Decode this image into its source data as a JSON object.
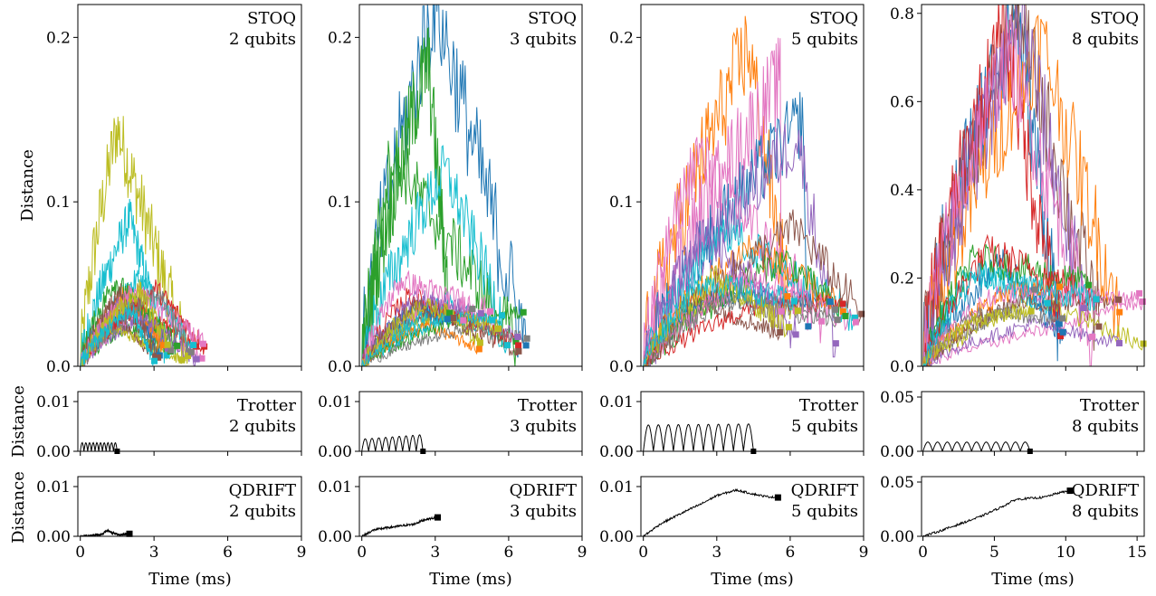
{
  "figure": {
    "ylabel": "Distance",
    "xlabel": "Time (ms)",
    "palette": [
      "#1f77b4",
      "#ff7f0e",
      "#2ca02c",
      "#d62728",
      "#9467bd",
      "#8c564b",
      "#e377c2",
      "#7f7f7f",
      "#bcbd22",
      "#17becf"
    ]
  },
  "chart_data": [
    {
      "type": "line",
      "row": "stoq",
      "col": 0,
      "name_line1": "STOQ",
      "name_line2": "2 qubits",
      "ylim": [
        0,
        0.22
      ],
      "yticks": [
        0,
        0.1,
        0.2
      ],
      "ytick_labels": [
        "0.0",
        "0.1",
        "0.2"
      ],
      "xlim": [
        -0.1,
        9
      ],
      "xticks": [
        0,
        3,
        6,
        9
      ],
      "n_series": 20,
      "tmax_range": [
        3.0,
        5.1
      ],
      "typical_peak": 0.04,
      "outliers": [
        {
          "peak": 0.145,
          "peak_t": 1.5,
          "color": "#bcbd22"
        },
        {
          "peak": 0.09,
          "peak_t": 2.0,
          "color": "#17becf"
        }
      ],
      "end_distance_range": [
        0.003,
        0.014
      ]
    },
    {
      "type": "line",
      "row": "stoq",
      "col": 1,
      "name_line1": "STOQ",
      "name_line2": "3 qubits",
      "ylim": [
        0,
        0.22
      ],
      "yticks": [
        0,
        0.1,
        0.2
      ],
      "ytick_labels": [
        "0.0",
        "0.1",
        "0.2"
      ],
      "xlim": [
        -0.1,
        9
      ],
      "xticks": [
        0,
        3,
        6,
        9
      ],
      "n_series": 20,
      "tmax_range": [
        3.5,
        6.8
      ],
      "typical_peak": 0.04,
      "outliers": [
        {
          "peak": 0.222,
          "peak_t": 3.0,
          "color": "#1f77b4"
        },
        {
          "peak": 0.186,
          "peak_t": 2.7,
          "color": "#2ca02c"
        },
        {
          "peak": 0.13,
          "peak_t": 1.2,
          "color": "#2ca02c"
        },
        {
          "peak": 0.12,
          "peak_t": 3.4,
          "color": "#17becf"
        }
      ],
      "end_distance_range": [
        0.005,
        0.035
      ]
    },
    {
      "type": "line",
      "row": "stoq",
      "col": 2,
      "name_line1": "STOQ",
      "name_line2": "5 qubits",
      "ylim": [
        0,
        0.22
      ],
      "yticks": [
        0,
        0.1,
        0.2
      ],
      "ytick_labels": [
        "0.0",
        "0.1",
        "0.2"
      ],
      "xlim": [
        -0.1,
        9
      ],
      "xticks": [
        0,
        3,
        6,
        9
      ],
      "n_series": 20,
      "tmax_range": [
        5.5,
        9.0
      ],
      "typical_peak": 0.065,
      "outliers": [
        {
          "peak": 0.195,
          "peak_t": 4.3,
          "color": "#ff7f0e"
        },
        {
          "peak": 0.19,
          "peak_t": 6.3,
          "color": "#e377c2"
        },
        {
          "peak": 0.15,
          "peak_t": 6.5,
          "color": "#1f77b4"
        },
        {
          "peak": 0.14,
          "peak_t": 6.3,
          "color": "#9467bd"
        },
        {
          "peak": 0.13,
          "peak_t": 2.2,
          "color": "#e377c2"
        }
      ],
      "end_distance_range": [
        0.012,
        0.045
      ]
    },
    {
      "type": "line",
      "row": "stoq",
      "col": 3,
      "name_line1": "STOQ",
      "name_line2": "8 qubits",
      "ylim": [
        0,
        0.82
      ],
      "yticks": [
        0,
        0.2,
        0.4,
        0.6,
        0.8
      ],
      "ytick_labels": [
        "0.0",
        "0.2",
        "0.4",
        "0.6",
        "0.8"
      ],
      "xlim": [
        -0.1,
        15.5
      ],
      "xticks": [
        0,
        5,
        10,
        15
      ],
      "n_series": 20,
      "tmax_range": [
        7.5,
        15.5
      ],
      "typical_peak": 0.19,
      "outliers": [
        {
          "peak": 0.81,
          "peak_t": 6.5,
          "color": "#1f77b4"
        },
        {
          "peak": 0.8,
          "peak_t": 6.7,
          "color": "#8c564b"
        },
        {
          "peak": 0.76,
          "peak_t": 5.7,
          "color": "#d62728"
        },
        {
          "peak": 0.74,
          "peak_t": 8.3,
          "color": "#ff7f0e"
        },
        {
          "peak": 0.78,
          "peak_t": 7.0,
          "color": "#9467bd"
        },
        {
          "peak": 0.72,
          "peak_t": 6.0,
          "color": "#e377c2"
        }
      ],
      "end_distance_range": [
        0.045,
        0.19
      ]
    },
    {
      "type": "line",
      "row": "trotter",
      "col": 0,
      "name_line1": "Trotter",
      "name_line2": "2 qubits",
      "ylim": [
        0,
        0.012
      ],
      "yticks": [
        0,
        0.01
      ],
      "ytick_labels": [
        "0.00",
        "0.01"
      ],
      "xlim": [
        -0.1,
        9
      ],
      "xticks": [
        0,
        3,
        6,
        9
      ],
      "t_end": 1.5,
      "n_bumps": 10,
      "peak": 0.0017,
      "peak_slope": 0
    },
    {
      "type": "line",
      "row": "trotter",
      "col": 1,
      "name_line1": "Trotter",
      "name_line2": "3 qubits",
      "ylim": [
        0,
        0.012
      ],
      "yticks": [
        0,
        0.01
      ],
      "ytick_labels": [
        "0.00",
        "0.01"
      ],
      "xlim": [
        -0.1,
        9
      ],
      "xticks": [
        0,
        3,
        6,
        9
      ],
      "t_end": 2.5,
      "n_bumps": 9,
      "peak": 0.0025,
      "peak_slope": 0.0008
    },
    {
      "type": "line",
      "row": "trotter",
      "col": 2,
      "name_line1": "Trotter",
      "name_line2": "5 qubits",
      "ylim": [
        0,
        0.012
      ],
      "yticks": [
        0,
        0.01
      ],
      "ytick_labels": [
        "0.00",
        "0.01"
      ],
      "xlim": [
        -0.1,
        9
      ],
      "xticks": [
        0,
        3,
        6,
        9
      ],
      "t_end": 4.5,
      "n_bumps": 11,
      "peak": 0.0053,
      "peak_slope": 0.0002
    },
    {
      "type": "line",
      "row": "trotter",
      "col": 3,
      "name_line1": "Trotter",
      "name_line2": "8 qubits",
      "ylim": [
        0,
        0.055
      ],
      "yticks": [
        0,
        0.05
      ],
      "ytick_labels": [
        "0.00",
        "0.05"
      ],
      "xlim": [
        -0.1,
        15.5
      ],
      "xticks": [
        0,
        5,
        10,
        15
      ],
      "t_end": 7.5,
      "n_bumps": 11,
      "peak": 0.0085,
      "peak_slope": 0
    },
    {
      "type": "line",
      "row": "qdrift",
      "col": 0,
      "name_line1": "QDRIFT",
      "name_line2": "2 qubits",
      "ylim": [
        0,
        0.012
      ],
      "yticks": [
        0,
        0.01
      ],
      "ytick_labels": [
        "0.00",
        "0.01"
      ],
      "xlim": [
        -0.1,
        9
      ],
      "xticks": [
        0,
        3,
        6,
        9
      ],
      "xtick_labels": [
        "0",
        "3",
        "6",
        "9"
      ],
      "t_end": 2.0,
      "end_value": 0.0005,
      "profile": [
        [
          0,
          0
        ],
        [
          0.5,
          0.0002
        ],
        [
          0.9,
          0.0004
        ],
        [
          1.1,
          0.0012
        ],
        [
          1.3,
          0.0007
        ],
        [
          1.6,
          0.0003
        ],
        [
          2.0,
          0.0005
        ]
      ]
    },
    {
      "type": "line",
      "row": "qdrift",
      "col": 1,
      "name_line1": "QDRIFT",
      "name_line2": "3 qubits",
      "ylim": [
        0,
        0.012
      ],
      "yticks": [
        0,
        0.01
      ],
      "ytick_labels": [
        "0.00",
        "0.01"
      ],
      "xlim": [
        -0.1,
        9
      ],
      "xticks": [
        0,
        3,
        6,
        9
      ],
      "xtick_labels": [
        "0",
        "3",
        "6",
        "9"
      ],
      "t_end": 3.1,
      "end_value": 0.0038,
      "profile": [
        [
          0,
          0
        ],
        [
          0.5,
          0.0013
        ],
        [
          1.0,
          0.0017
        ],
        [
          1.6,
          0.0021
        ],
        [
          2.1,
          0.0024
        ],
        [
          2.6,
          0.0034
        ],
        [
          3.1,
          0.0038
        ]
      ]
    },
    {
      "type": "line",
      "row": "qdrift",
      "col": 2,
      "name_line1": "QDRIFT",
      "name_line2": "5 qubits",
      "ylim": [
        0,
        0.012
      ],
      "yticks": [
        0,
        0.01
      ],
      "ytick_labels": [
        "0.00",
        "0.01"
      ],
      "xlim": [
        -0.1,
        9
      ],
      "xticks": [
        0,
        3,
        6,
        9
      ],
      "xtick_labels": [
        "0",
        "3",
        "6",
        "9"
      ],
      "t_end": 5.5,
      "end_value": 0.0078,
      "profile": [
        [
          0,
          0
        ],
        [
          0.7,
          0.0025
        ],
        [
          1.5,
          0.0045
        ],
        [
          2.4,
          0.0066
        ],
        [
          3.0,
          0.0082
        ],
        [
          3.8,
          0.0093
        ],
        [
          4.5,
          0.0085
        ],
        [
          5.0,
          0.008
        ],
        [
          5.5,
          0.0078
        ]
      ]
    },
    {
      "type": "line",
      "row": "qdrift",
      "col": 3,
      "name_line1": "QDRIFT",
      "name_line2": "8 qubits",
      "ylim": [
        0,
        0.055
      ],
      "yticks": [
        0,
        0.05
      ],
      "ytick_labels": [
        "0.00",
        "0.05"
      ],
      "xlim": [
        -0.1,
        15.5
      ],
      "xticks": [
        0,
        5,
        10,
        15
      ],
      "xtick_labels": [
        "0",
        "5",
        "10",
        "15"
      ],
      "t_end": 10.3,
      "end_value": 0.042,
      "profile": [
        [
          0,
          0
        ],
        [
          1.2,
          0.005
        ],
        [
          2.5,
          0.011
        ],
        [
          4.0,
          0.018
        ],
        [
          5.5,
          0.027
        ],
        [
          6.5,
          0.034
        ],
        [
          7.5,
          0.035
        ],
        [
          8.5,
          0.036
        ],
        [
          9.5,
          0.04
        ],
        [
          10.3,
          0.042
        ]
      ]
    }
  ]
}
